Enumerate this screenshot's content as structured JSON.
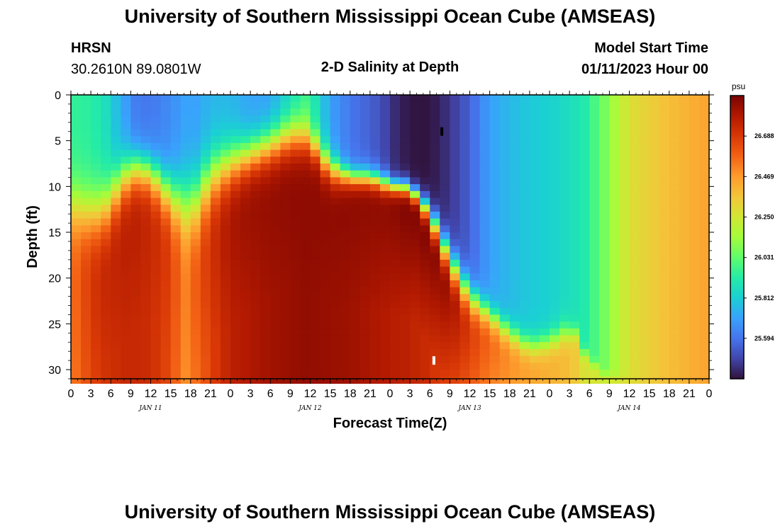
{
  "header": {
    "title": "University of Southern Mississippi Ocean Cube (AMSEAS)",
    "station": "HRSN",
    "coords": "30.2610N  89.0801W",
    "subtitle": "2-D Salinity at Depth",
    "model_label": "Model Start Time",
    "model_time": "01/11/2023 Hour 00"
  },
  "footer": {
    "title": "University of Southern Mississippi Ocean Cube (AMSEAS)"
  },
  "chart_data": {
    "type": "heatmap",
    "title": "2-D Salinity at Depth",
    "xlabel": "Forecast Time(Z)",
    "ylabel": "Depth (ft)",
    "x_range_hours": [
      0,
      96
    ],
    "y_range_ft": [
      0,
      31
    ],
    "x_tick_labels": [
      "0",
      "3",
      "6",
      "9",
      "12",
      "15",
      "18",
      "21",
      "0",
      "3",
      "6",
      "9",
      "12",
      "15",
      "18",
      "21",
      "0",
      "3",
      "6",
      "9",
      "12",
      "15",
      "18",
      "21",
      "0",
      "3",
      "6",
      "9",
      "12",
      "15",
      "18",
      "21",
      "0"
    ],
    "y_ticks": [
      0,
      5,
      10,
      15,
      20,
      25,
      30
    ],
    "y_tick_labels": [
      "0",
      "5",
      "10",
      "15",
      "20",
      "25",
      "30"
    ],
    "date_labels": [
      {
        "hour": 12,
        "label": "JAN 11"
      },
      {
        "hour": 36,
        "label": "JAN 12"
      },
      {
        "hour": 60,
        "label": "JAN 13"
      },
      {
        "hour": 84,
        "label": "JAN 14"
      }
    ],
    "colorbar": {
      "unit": "psu",
      "min": 25.375,
      "max": 26.907,
      "ticks": [
        26.688,
        26.469,
        26.25,
        26.031,
        25.812,
        25.594
      ],
      "tick_labels": [
        "26.688",
        "26.469",
        "26.250",
        "26.031",
        "25.812",
        "25.594"
      ],
      "colors": [
        "#30123b",
        "#4145ab",
        "#4675ed",
        "#39a2fc",
        "#1bcfd4",
        "#24eca6",
        "#61fc6c",
        "#a4fc3b",
        "#d1e834",
        "#f3c63a",
        "#fe9b2d",
        "#f36315",
        "#d93806",
        "#b11901",
        "#7a0402"
      ]
    },
    "markers": [
      {
        "hour": 55.8,
        "depth_ft": 4.0,
        "color": "#000000"
      },
      {
        "hour": 54.6,
        "depth_ft": 29.0,
        "color": "#ffffff"
      }
    ],
    "salinity_profile_description": "columns of boundary depths between fresher surface water and saltier deep water over 96 forecast hours",
    "field": {
      "time_knots_h": [
        0,
        3,
        5,
        8,
        10,
        12,
        15,
        17,
        19,
        21,
        24,
        27,
        30,
        33,
        35,
        36,
        39,
        42,
        45,
        47,
        48,
        50,
        52,
        54,
        57,
        60,
        63,
        66,
        69,
        72,
        74,
        76,
        77,
        80,
        84,
        90,
        96
      ],
      "top_psu": [
        25.95,
        25.93,
        25.88,
        25.7,
        25.6,
        25.6,
        25.65,
        25.7,
        25.7,
        25.75,
        25.75,
        25.7,
        25.7,
        25.85,
        25.95,
        25.95,
        25.7,
        25.6,
        25.55,
        25.5,
        25.45,
        25.4,
        25.38,
        25.38,
        25.45,
        25.55,
        25.7,
        25.76,
        25.8,
        25.82,
        25.85,
        25.88,
        25.9,
        26.05,
        26.28,
        26.38,
        26.45
      ],
      "bottom_psu": [
        26.5,
        26.6,
        26.65,
        26.7,
        26.7,
        26.7,
        26.6,
        26.45,
        26.5,
        26.6,
        26.72,
        26.75,
        26.8,
        26.82,
        26.85,
        26.85,
        26.82,
        26.8,
        26.75,
        26.72,
        26.7,
        26.65,
        26.6,
        26.55,
        26.4,
        26.3,
        26.25,
        26.22,
        26.22,
        26.25,
        26.3,
        26.3,
        26.28,
        26.25,
        26.3,
        26.38,
        26.45
      ],
      "max_psu": [
        26.55,
        26.7,
        26.75,
        26.78,
        26.78,
        26.75,
        26.68,
        26.52,
        26.62,
        26.72,
        26.82,
        26.85,
        26.86,
        26.87,
        26.87,
        26.87,
        26.87,
        26.87,
        26.87,
        26.87,
        26.87,
        26.9,
        26.9,
        26.9,
        26.85,
        26.7,
        26.58,
        26.5,
        26.45,
        26.42,
        26.4,
        26.35,
        26.28,
        26.25,
        26.3,
        26.38,
        26.45
      ],
      "halocline_ft": [
        12,
        13,
        12.5,
        9,
        8,
        8.5,
        11,
        12,
        11.5,
        9,
        7.5,
        6.5,
        5.5,
        4.5,
        4.5,
        5,
        8,
        9,
        9,
        9.5,
        10,
        10,
        11,
        13,
        18,
        22,
        24,
        26,
        27.5,
        27,
        26,
        26,
        28,
        30.5,
        31,
        31,
        31
      ],
      "halocline_width_ft": [
        7,
        7,
        7,
        6,
        5,
        5,
        6,
        8,
        8,
        7,
        6,
        5,
        5,
        5,
        5,
        4,
        4,
        2.5,
        2.5,
        2.5,
        2,
        2,
        2,
        3,
        4,
        4,
        3,
        3,
        3,
        3,
        3,
        2,
        1.5,
        1,
        1,
        1,
        1
      ]
    }
  }
}
